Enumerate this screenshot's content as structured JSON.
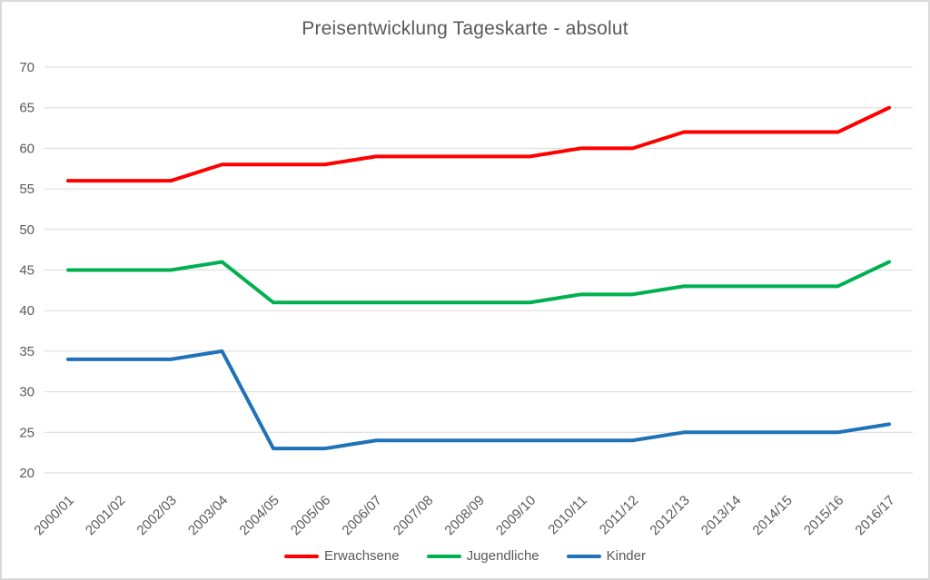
{
  "title": "Preisentwicklung Tageskarte - absolut",
  "chart_data": {
    "type": "line",
    "title": "Preisentwicklung Tageskarte - absolut",
    "categories": [
      "2000/01",
      "2001/02",
      "2002/03",
      "2003/04",
      "2004/05",
      "2005/06",
      "2006/07",
      "2007/08",
      "2008/09",
      "2009/10",
      "2010/11",
      "2011/12",
      "2012/13",
      "2013/14",
      "2014/15",
      "2015/16",
      "2016/17"
    ],
    "series": [
      {
        "name": "Erwachsene",
        "color": "#ff0000",
        "values": [
          56,
          56,
          56,
          58,
          58,
          58,
          59,
          59,
          59,
          59,
          60,
          60,
          62,
          62,
          62,
          62,
          65
        ]
      },
      {
        "name": "Jugendliche",
        "color": "#00b050",
        "values": [
          45,
          45,
          45,
          46,
          41,
          41,
          41,
          41,
          41,
          41,
          42,
          42,
          43,
          43,
          43,
          43,
          46
        ]
      },
      {
        "name": "Kinder",
        "color": "#1f72b8",
        "values": [
          34,
          34,
          34,
          35,
          23,
          23,
          24,
          24,
          24,
          24,
          24,
          24,
          25,
          25,
          25,
          25,
          26
        ]
      }
    ],
    "ylim": [
      20,
      70
    ],
    "ytick_step": 5,
    "grid": "horizontal-only",
    "legend_position": "bottom",
    "text_color": "#595959",
    "gridline_color": "#d9d9d9"
  }
}
